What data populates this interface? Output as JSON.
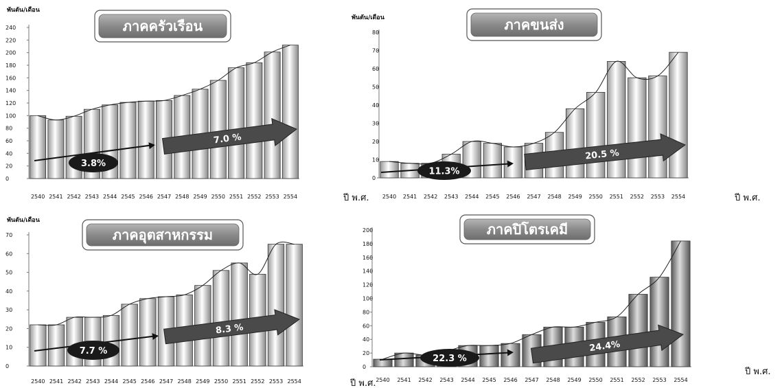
{
  "chart_data": [
    {
      "type": "bar",
      "title": "ภาคครัวเรือน",
      "ylabel": "พันตัน/เดือน",
      "xlabel": "ปี พ.ศ.",
      "ylim": [
        0,
        240
      ],
      "yticks": [
        0,
        20,
        40,
        60,
        80,
        100,
        120,
        140,
        160,
        180,
        200,
        220,
        240
      ],
      "categories": [
        "2540",
        "2541",
        "2542",
        "2543",
        "2544",
        "2545",
        "2546",
        "2547",
        "2548",
        "2549",
        "2550",
        "2551",
        "2552",
        "2553",
        "2554"
      ],
      "values": [
        100,
        93,
        99,
        110,
        117,
        121,
        123,
        124,
        132,
        142,
        156,
        176,
        184,
        201,
        212
      ],
      "annotations": [
        {
          "text": "3.8%",
          "from": "2540",
          "to": "2546"
        },
        {
          "text": "7.0 %",
          "from": "2547",
          "to": "2554"
        }
      ]
    },
    {
      "type": "bar",
      "title": "ภาคขนส่ง",
      "ylabel": "พันตัน/เดือน",
      "xlabel": "ปี พ.ศ.",
      "ylim": [
        0,
        80
      ],
      "yticks": [
        0,
        10,
        20,
        30,
        40,
        50,
        60,
        70,
        80
      ],
      "categories": [
        "2540",
        "2541",
        "2542",
        "2543",
        "2544",
        "2545",
        "2546",
        "2547",
        "2548",
        "2549",
        "2550",
        "2551",
        "2552",
        "2553",
        "2554"
      ],
      "values": [
        9,
        8,
        8,
        13,
        20,
        19,
        17,
        19,
        25,
        38,
        47,
        64,
        55,
        56,
        69
      ],
      "annotations": [
        {
          "text": "11.3%",
          "from": "2540",
          "to": "2546"
        },
        {
          "text": "20.5 %",
          "from": "2547",
          "to": "2554"
        }
      ]
    },
    {
      "type": "bar",
      "title": "ภาคอุตสาหกรรม",
      "ylabel": "พันตัน/เดือน",
      "xlabel": "",
      "ylim": [
        0,
        70
      ],
      "yticks": [
        0,
        10,
        20,
        30,
        40,
        50,
        60,
        70
      ],
      "categories": [
        "2540",
        "2541",
        "2542",
        "2543",
        "2544",
        "2545",
        "2546",
        "2547",
        "2548",
        "2549",
        "2550",
        "2551",
        "2552",
        "2553",
        "2554"
      ],
      "values": [
        22,
        22,
        26,
        26,
        27,
        33,
        36,
        37,
        38,
        43,
        51,
        55,
        49,
        65,
        65
      ],
      "annotations": [
        {
          "text": "7.7 %",
          "from": "2540",
          "to": "2546"
        },
        {
          "text": "8.3 %",
          "from": "2547",
          "to": "2554"
        }
      ]
    },
    {
      "type": "bar",
      "title": "ภาคปิโตรเคมี",
      "ylabel": "",
      "xlabel": "ปี พ.ศ.",
      "ylim": [
        0,
        200
      ],
      "yticks": [
        0,
        20,
        40,
        60,
        80,
        100,
        120,
        140,
        160,
        180,
        200
      ],
      "categories": [
        "2540",
        "2541",
        "2542",
        "2543",
        "2544",
        "2545",
        "2546",
        "2547",
        "2548",
        "2549",
        "2550",
        "2551",
        "2552",
        "2553",
        "2554"
      ],
      "values": [
        11,
        20,
        17,
        23,
        31,
        31,
        34,
        47,
        58,
        58,
        65,
        73,
        106,
        131,
        184
      ],
      "annotations": [
        {
          "text": "22.3 %",
          "from": "2540",
          "to": "2546"
        },
        {
          "text": "24.4%",
          "from": "2547",
          "to": "2554"
        }
      ]
    }
  ],
  "extra_labels": {
    "left_xlabel": "ปี พ.ศ."
  }
}
